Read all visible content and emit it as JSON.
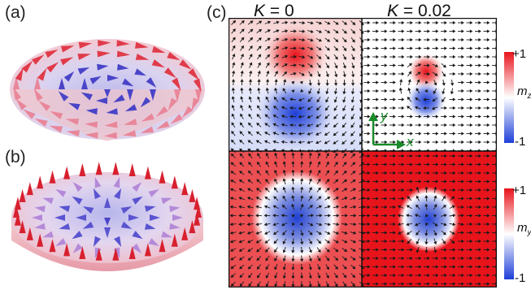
{
  "panels": {
    "a": {
      "label": "(a)"
    },
    "b": {
      "label": "(b)"
    },
    "c": {
      "label": "(c)"
    }
  },
  "columns": [
    {
      "k_symbol": "K",
      "k_value": "= 0"
    },
    {
      "k_symbol": "K",
      "k_value": "= 0.02"
    }
  ],
  "colorbars": [
    {
      "top_label": "+1",
      "bottom_label": "-1",
      "variable": "m",
      "subscript": "z"
    },
    {
      "top_label": "+1",
      "bottom_label": "-1",
      "variable": "m",
      "subscript": "y"
    }
  ],
  "axes_inset": {
    "y_label": "y",
    "x_label": "x",
    "color": "#1a8a2a"
  },
  "colors": {
    "positive": "#e8141c",
    "negative": "#1e3fd8",
    "neutral": "#ffffff",
    "arrows": "#1a1a1a"
  },
  "maps": [
    {
      "id": "top-left",
      "quantity": "mz",
      "k": 0,
      "features": [
        "red lobe above center",
        "blue lobe below center"
      ]
    },
    {
      "id": "top-right",
      "quantity": "mz",
      "k": 0.02,
      "features": [
        "small red lobe",
        "small blue lobe"
      ]
    },
    {
      "id": "bottom-left",
      "quantity": "my",
      "k": 0,
      "features": [
        "red background",
        "blue core"
      ]
    },
    {
      "id": "bottom-right",
      "quantity": "my",
      "k": 0.02,
      "features": [
        "red background",
        "small blue core"
      ]
    }
  ]
}
